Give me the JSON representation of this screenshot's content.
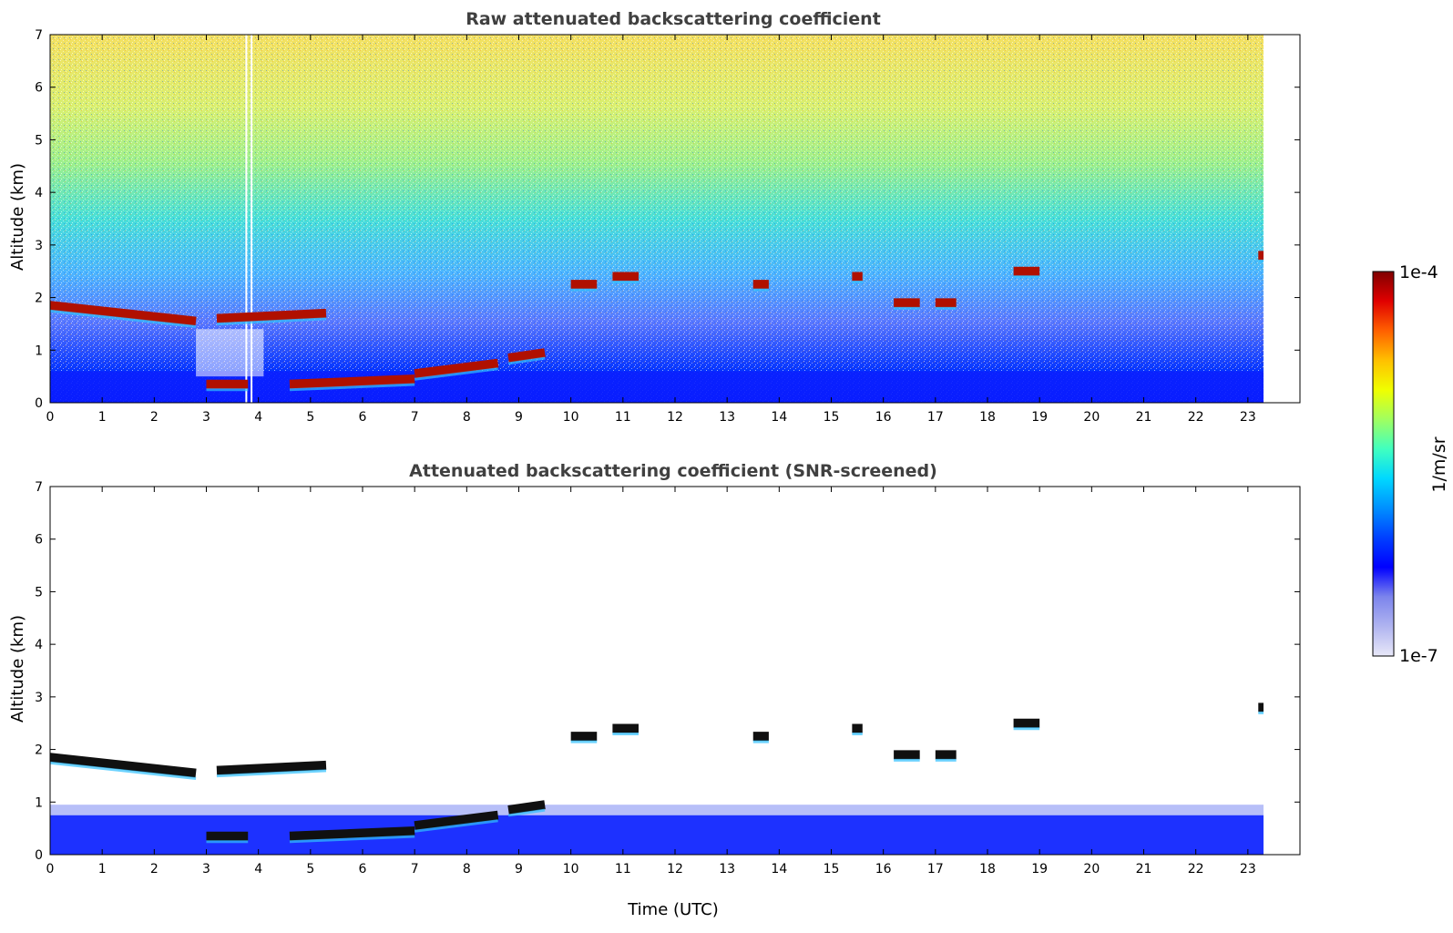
{
  "chart_data": [
    {
      "type": "heatmap",
      "title": "Raw attenuated backscattering coefficient",
      "xlabel": "",
      "ylabel": "Altitude (km)",
      "xlim": [
        0,
        24
      ],
      "ylim": [
        0,
        7
      ],
      "x_data_end": 23.3,
      "xticks": [
        "0",
        "1",
        "2",
        "3",
        "4",
        "5",
        "6",
        "7",
        "8",
        "9",
        "10",
        "11",
        "12",
        "13",
        "14",
        "15",
        "16",
        "17",
        "18",
        "19",
        "20",
        "21",
        "22",
        "23"
      ],
      "yticks": [
        "0",
        "1",
        "2",
        "3",
        "4",
        "5",
        "6",
        "7"
      ],
      "cloud_layers": [
        {
          "x": [
            0,
            2.8
          ],
          "y": [
            1.85,
            1.55
          ]
        },
        {
          "x": [
            3.2,
            5.3
          ],
          "y": [
            1.6,
            1.7
          ]
        },
        {
          "x": [
            3.0,
            3.8
          ],
          "y": [
            0.35,
            0.35
          ]
        },
        {
          "x": [
            4.6,
            7.0
          ],
          "y": [
            0.35,
            0.45
          ]
        },
        {
          "x": [
            7.0,
            8.6
          ],
          "y": [
            0.55,
            0.75
          ]
        },
        {
          "x": [
            8.8,
            9.5
          ],
          "y": [
            0.85,
            0.95
          ]
        },
        {
          "x": [
            10.0,
            10.5
          ],
          "y": [
            2.25,
            2.25
          ]
        },
        {
          "x": [
            10.8,
            11.3
          ],
          "y": [
            2.4,
            2.4
          ]
        },
        {
          "x": [
            13.5,
            13.8
          ],
          "y": [
            2.25,
            2.25
          ]
        },
        {
          "x": [
            15.4,
            15.6
          ],
          "y": [
            2.4,
            2.4
          ]
        },
        {
          "x": [
            16.2,
            16.7
          ],
          "y": [
            1.9,
            1.9
          ]
        },
        {
          "x": [
            17.0,
            17.4
          ],
          "y": [
            1.9,
            1.9
          ]
        },
        {
          "x": [
            18.5,
            19.0
          ],
          "y": [
            2.5,
            2.5
          ]
        },
        {
          "x": [
            23.2,
            23.3
          ],
          "y": [
            2.8,
            2.8
          ]
        }
      ]
    },
    {
      "type": "heatmap",
      "title": "Attenuated backscattering coefficient (SNR-screened)",
      "xlabel": "Time (UTC)",
      "ylabel": "Altitude (km)",
      "xlim": [
        0,
        24
      ],
      "ylim": [
        0,
        7
      ],
      "x_data_end": 23.3,
      "xticks": [
        "0",
        "1",
        "2",
        "3",
        "4",
        "5",
        "6",
        "7",
        "8",
        "9",
        "10",
        "11",
        "12",
        "13",
        "14",
        "15",
        "16",
        "17",
        "18",
        "19",
        "20",
        "21",
        "22",
        "23"
      ],
      "yticks": [
        "0",
        "1",
        "2",
        "3",
        "4",
        "5",
        "6",
        "7"
      ],
      "cloud_layers": [
        {
          "x": [
            0,
            2.8
          ],
          "y": [
            1.85,
            1.55
          ]
        },
        {
          "x": [
            3.2,
            5.3
          ],
          "y": [
            1.6,
            1.7
          ]
        },
        {
          "x": [
            3.0,
            3.8
          ],
          "y": [
            0.35,
            0.35
          ]
        },
        {
          "x": [
            4.6,
            7.0
          ],
          "y": [
            0.35,
            0.45
          ]
        },
        {
          "x": [
            7.0,
            8.6
          ],
          "y": [
            0.55,
            0.75
          ]
        },
        {
          "x": [
            8.8,
            9.5
          ],
          "y": [
            0.85,
            0.95
          ]
        },
        {
          "x": [
            10.0,
            10.5
          ],
          "y": [
            2.25,
            2.25
          ]
        },
        {
          "x": [
            10.8,
            11.3
          ],
          "y": [
            2.4,
            2.4
          ]
        },
        {
          "x": [
            13.5,
            13.8
          ],
          "y": [
            2.25,
            2.25
          ]
        },
        {
          "x": [
            15.4,
            15.6
          ],
          "y": [
            2.4,
            2.4
          ]
        },
        {
          "x": [
            16.2,
            16.7
          ],
          "y": [
            1.9,
            1.9
          ]
        },
        {
          "x": [
            17.0,
            17.4
          ],
          "y": [
            1.9,
            1.9
          ]
        },
        {
          "x": [
            18.5,
            19.0
          ],
          "y": [
            2.5,
            2.5
          ]
        },
        {
          "x": [
            23.2,
            23.3
          ],
          "y": [
            2.8,
            2.8
          ]
        }
      ]
    }
  ],
  "colorbar": {
    "label": "1/m/sr",
    "min_label": "1e-7",
    "max_label": "1e-4",
    "scale": "log",
    "colors": [
      "#e8e8f8",
      "#b0b4f0",
      "#7c84ec",
      "#0000ff",
      "#0040ff",
      "#0090ff",
      "#00d8ff",
      "#40ffc0",
      "#a0ff60",
      "#f0ff00",
      "#ffc000",
      "#ff6000",
      "#e00000",
      "#800000"
    ]
  }
}
